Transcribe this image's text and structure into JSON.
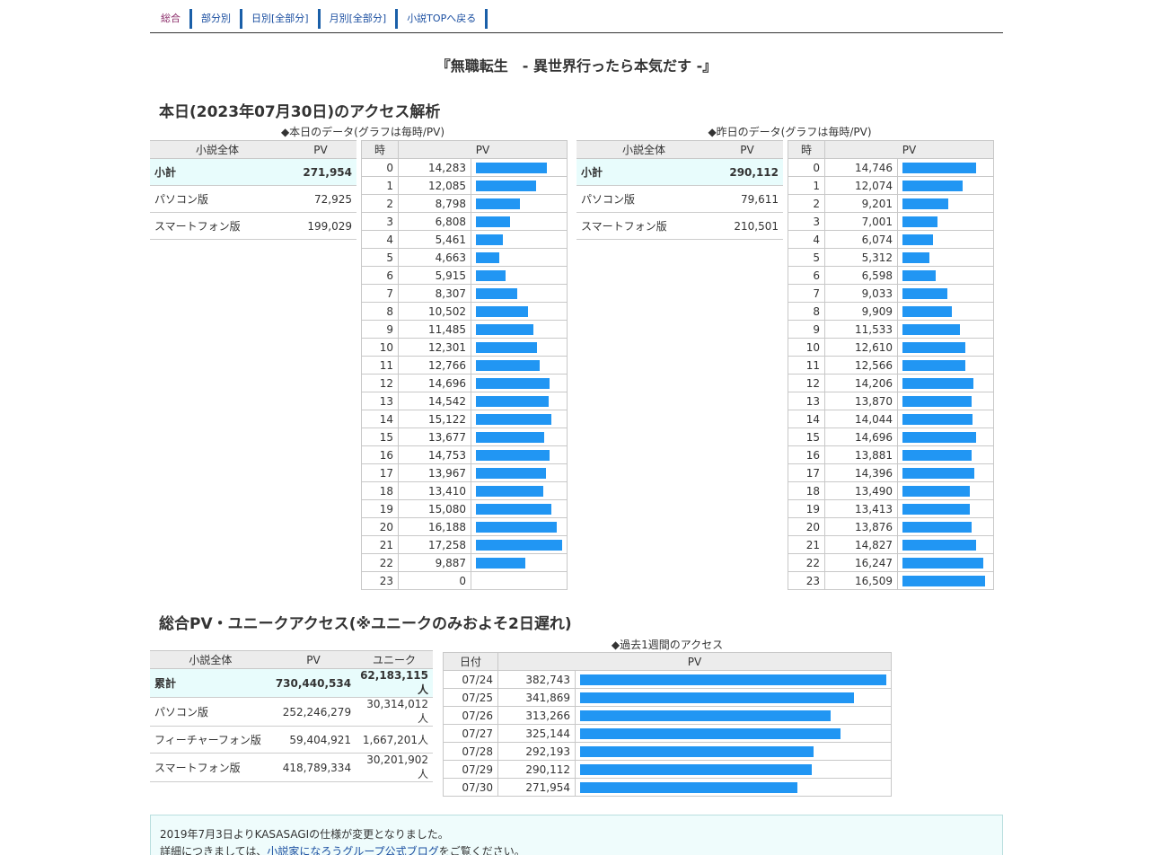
{
  "nav": {
    "items": [
      "総合",
      "部分別",
      "日別[全部分]",
      "月別[全部分]",
      "小説TOPへ戻る"
    ]
  },
  "novel_title": "『無職転生　- 異世界行ったら本気だす -』",
  "today": {
    "title": "本日(2023年07月30日)のアクセス解析",
    "caption": "◆本日のデータ(グラフは毎時/PV)",
    "summary_headers": [
      "小説全体",
      "PV"
    ],
    "summary": [
      {
        "label": "小計",
        "value": "271,954"
      },
      {
        "label": "パソコン版",
        "value": "72,925"
      },
      {
        "label": "スマートフォン版",
        "value": "199,029"
      }
    ],
    "hour_headers": [
      "時",
      "PV"
    ],
    "hours": [
      {
        "h": "0",
        "v": "14,283",
        "pv": 14283
      },
      {
        "h": "1",
        "v": "12,085",
        "pv": 12085
      },
      {
        "h": "2",
        "v": "8,798",
        "pv": 8798
      },
      {
        "h": "3",
        "v": "6,808",
        "pv": 6808
      },
      {
        "h": "4",
        "v": "5,461",
        "pv": 5461
      },
      {
        "h": "5",
        "v": "4,663",
        "pv": 4663
      },
      {
        "h": "6",
        "v": "5,915",
        "pv": 5915
      },
      {
        "h": "7",
        "v": "8,307",
        "pv": 8307
      },
      {
        "h": "8",
        "v": "10,502",
        "pv": 10502
      },
      {
        "h": "9",
        "v": "11,485",
        "pv": 11485
      },
      {
        "h": "10",
        "v": "12,301",
        "pv": 12301
      },
      {
        "h": "11",
        "v": "12,766",
        "pv": 12766
      },
      {
        "h": "12",
        "v": "14,696",
        "pv": 14696
      },
      {
        "h": "13",
        "v": "14,542",
        "pv": 14542
      },
      {
        "h": "14",
        "v": "15,122",
        "pv": 15122
      },
      {
        "h": "15",
        "v": "13,677",
        "pv": 13677
      },
      {
        "h": "16",
        "v": "14,753",
        "pv": 14753
      },
      {
        "h": "17",
        "v": "13,967",
        "pv": 13967
      },
      {
        "h": "18",
        "v": "13,410",
        "pv": 13410
      },
      {
        "h": "19",
        "v": "15,080",
        "pv": 15080
      },
      {
        "h": "20",
        "v": "16,188",
        "pv": 16188
      },
      {
        "h": "21",
        "v": "17,258",
        "pv": 17258
      },
      {
        "h": "22",
        "v": "9,887",
        "pv": 9887
      },
      {
        "h": "23",
        "v": "0",
        "pv": 0
      }
    ]
  },
  "yesterday": {
    "caption": "◆昨日のデータ(グラフは毎時/PV)",
    "summary_headers": [
      "小説全体",
      "PV"
    ],
    "summary": [
      {
        "label": "小計",
        "value": "290,112"
      },
      {
        "label": "パソコン版",
        "value": "79,611"
      },
      {
        "label": "スマートフォン版",
        "value": "210,501"
      }
    ],
    "hour_headers": [
      "時",
      "PV"
    ],
    "hours": [
      {
        "h": "0",
        "v": "14,746",
        "pv": 14746
      },
      {
        "h": "1",
        "v": "12,074",
        "pv": 12074
      },
      {
        "h": "2",
        "v": "9,201",
        "pv": 9201
      },
      {
        "h": "3",
        "v": "7,001",
        "pv": 7001
      },
      {
        "h": "4",
        "v": "6,074",
        "pv": 6074
      },
      {
        "h": "5",
        "v": "5,312",
        "pv": 5312
      },
      {
        "h": "6",
        "v": "6,598",
        "pv": 6598
      },
      {
        "h": "7",
        "v": "9,033",
        "pv": 9033
      },
      {
        "h": "8",
        "v": "9,909",
        "pv": 9909
      },
      {
        "h": "9",
        "v": "11,533",
        "pv": 11533
      },
      {
        "h": "10",
        "v": "12,610",
        "pv": 12610
      },
      {
        "h": "11",
        "v": "12,566",
        "pv": 12566
      },
      {
        "h": "12",
        "v": "14,206",
        "pv": 14206
      },
      {
        "h": "13",
        "v": "13,870",
        "pv": 13870
      },
      {
        "h": "14",
        "v": "14,044",
        "pv": 14044
      },
      {
        "h": "15",
        "v": "14,696",
        "pv": 14696
      },
      {
        "h": "16",
        "v": "13,881",
        "pv": 13881
      },
      {
        "h": "17",
        "v": "14,396",
        "pv": 14396
      },
      {
        "h": "18",
        "v": "13,490",
        "pv": 13490
      },
      {
        "h": "19",
        "v": "13,413",
        "pv": 13413
      },
      {
        "h": "20",
        "v": "13,876",
        "pv": 13876
      },
      {
        "h": "21",
        "v": "14,827",
        "pv": 14827
      },
      {
        "h": "22",
        "v": "16,247",
        "pv": 16247
      },
      {
        "h": "23",
        "v": "16,509",
        "pv": 16509
      }
    ]
  },
  "total": {
    "title": "総合PV・ユニークアクセス(※ユニークのみおよそ2日遅れ)",
    "headers": [
      "小説全体",
      "PV",
      "ユニーク"
    ],
    "rows": [
      {
        "label": "累計",
        "pv": "730,440,534",
        "unique": "62,183,115人"
      },
      {
        "label": "パソコン版",
        "pv": "252,246,279",
        "unique": "30,314,012人"
      },
      {
        "label": "フィーチャーフォン版",
        "pv": "59,404,921",
        "unique": "1,667,201人"
      },
      {
        "label": "スマートフォン版",
        "pv": "418,789,334",
        "unique": "30,201,902人"
      }
    ]
  },
  "week": {
    "caption": "◆過去1週間のアクセス",
    "headers": [
      "日付",
      "PV"
    ],
    "rows": [
      {
        "d": "07/24",
        "v": "382,743",
        "pv": 382743
      },
      {
        "d": "07/25",
        "v": "341,869",
        "pv": 341869
      },
      {
        "d": "07/26",
        "v": "313,266",
        "pv": 313266
      },
      {
        "d": "07/27",
        "v": "325,144",
        "pv": 325144
      },
      {
        "d": "07/28",
        "v": "292,193",
        "pv": 292193
      },
      {
        "d": "07/29",
        "v": "290,112",
        "pv": 290112
      },
      {
        "d": "07/30",
        "v": "271,954",
        "pv": 271954
      }
    ]
  },
  "notice": {
    "line1": "2019年7月3日よりKASASAGIの仕様が変更となりました。",
    "line2_prefix": "詳細につきましては、",
    "line2_link": "小説家になろうグループ公式ブログ",
    "line2_suffix": "をご覧ください。"
  },
  "bar_color": "#2196f3"
}
